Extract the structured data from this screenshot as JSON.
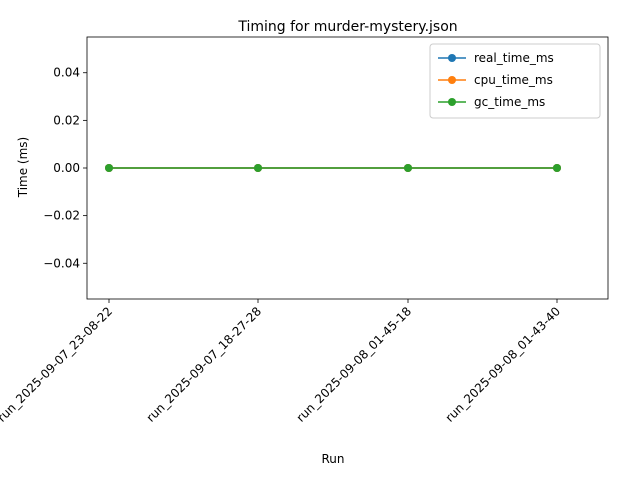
{
  "chart_data": {
    "type": "line",
    "title": "Timing for murder-mystery.json",
    "xlabel": "Run",
    "ylabel": "Time (ms)",
    "categories": [
      "run_2025-09-07_23-08-22",
      "run_2025-09-07_18-27-28",
      "run_2025-09-08_01-45-18",
      "run_2025-09-08_01-43-40"
    ],
    "series": [
      {
        "name": "real_time_ms",
        "color": "#1f77b4",
        "values": [
          0,
          0,
          0,
          0
        ]
      },
      {
        "name": "cpu_time_ms",
        "color": "#ff7f0e",
        "values": [
          0,
          0,
          0,
          0
        ]
      },
      {
        "name": "gc_time_ms",
        "color": "#2ca02c",
        "values": [
          0,
          0,
          0,
          0
        ]
      }
    ],
    "ylim": [
      -0.055,
      0.055
    ],
    "yticks": [
      {
        "value": 0.04,
        "label": "0.04"
      },
      {
        "value": 0.02,
        "label": "0.02"
      },
      {
        "value": 0.0,
        "label": "0.00"
      },
      {
        "value": -0.02,
        "label": "−0.02"
      },
      {
        "value": -0.04,
        "label": "−0.04"
      }
    ],
    "marker": "circle",
    "grid": false,
    "legend_position": "top-right"
  }
}
